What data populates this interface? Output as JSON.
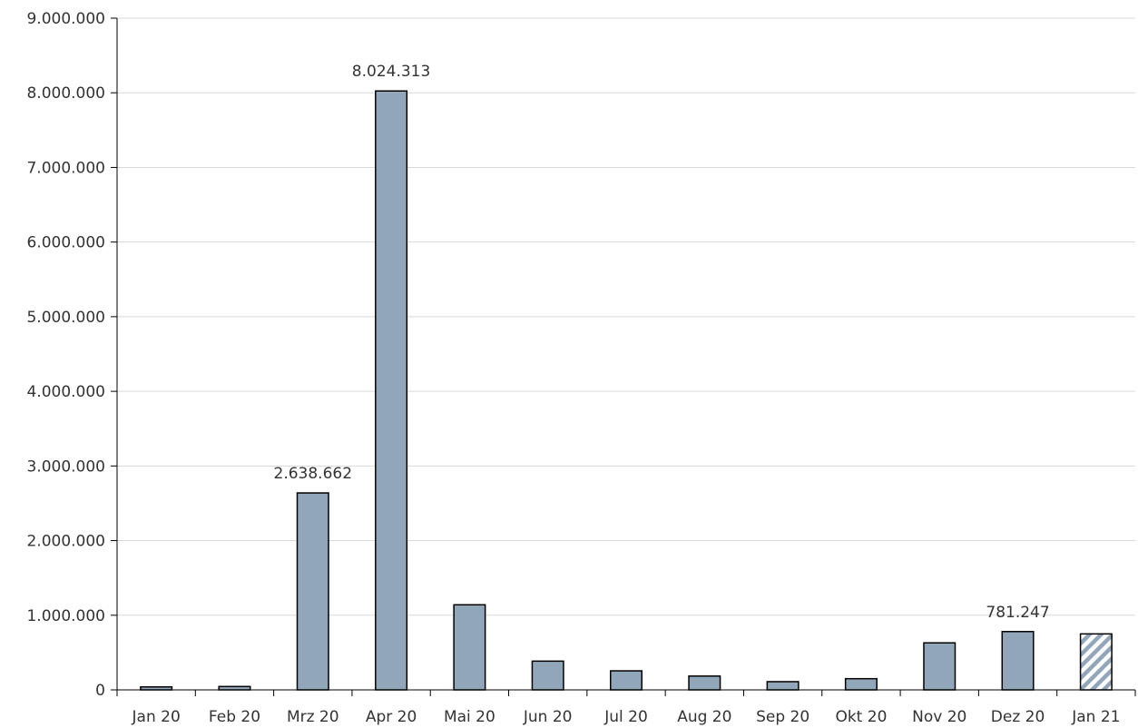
{
  "chart_data": {
    "type": "bar",
    "categories": [
      "Jan 20",
      "Feb 20",
      "Mrz 20",
      "Apr 20",
      "Mai 20",
      "Jun 20",
      "Jul 20",
      "Aug 20",
      "Sep 20",
      "Okt 20",
      "Nov 20",
      "Dez 20",
      "Jan 21"
    ],
    "values": [
      40000,
      45000,
      2638662,
      8024313,
      1140000,
      385000,
      255000,
      185000,
      110000,
      150000,
      630000,
      781247,
      750000
    ],
    "highlight_pattern_categories": [
      "Jan 21"
    ],
    "data_labels": [
      {
        "category": "Mrz 20",
        "text": "2.638.662"
      },
      {
        "category": "Apr 20",
        "text": "8.024.313"
      },
      {
        "category": "Dez 20",
        "text": "781.247"
      }
    ],
    "y_ticks": [
      {
        "value": 0,
        "label": "0"
      },
      {
        "value": 1000000,
        "label": "1.000.000"
      },
      {
        "value": 2000000,
        "label": "2.000.000"
      },
      {
        "value": 3000000,
        "label": "3.000.000"
      },
      {
        "value": 4000000,
        "label": "4.000.000"
      },
      {
        "value": 5000000,
        "label": "5.000.000"
      },
      {
        "value": 6000000,
        "label": "6.000.000"
      },
      {
        "value": 7000000,
        "label": "7.000.000"
      },
      {
        "value": 8000000,
        "label": "8.000.000"
      },
      {
        "value": 9000000,
        "label": "9.000.000"
      }
    ],
    "ylim": [
      0,
      9000000
    ],
    "grid": true,
    "legend": "none",
    "colors": {
      "bar_fill": "#92a6ba",
      "bar_stroke": "#000000",
      "hatch_stripe": "#92a6ba",
      "grid": "#d9d9d9",
      "axis": "#000000",
      "text": "#333333"
    }
  }
}
